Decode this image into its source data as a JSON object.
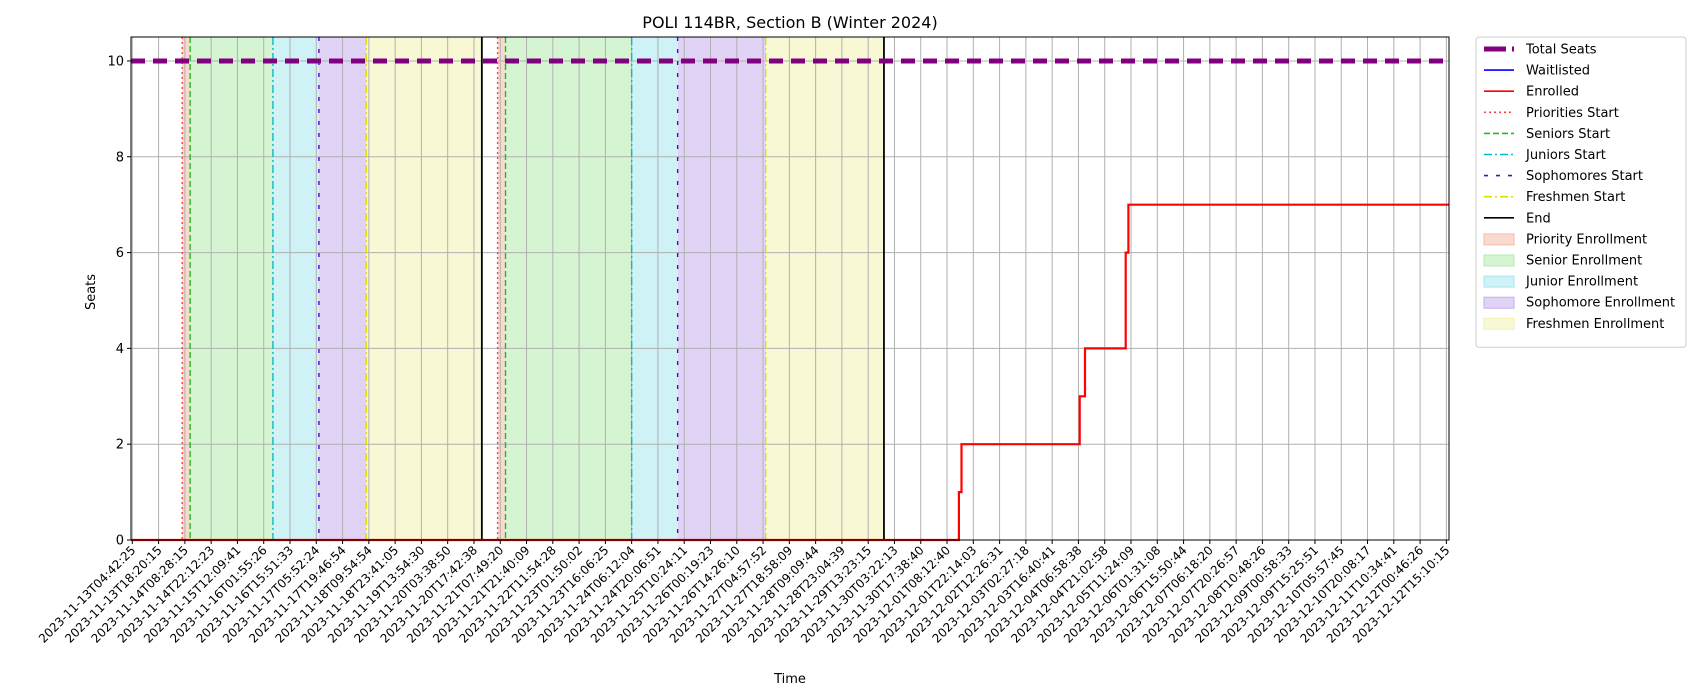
{
  "chart_data": {
    "type": "line",
    "title": "POLI 114BR, Section B (Winter 2024)",
    "xlabel": "Time",
    "ylabel": "Seats",
    "ylim": [
      0,
      10.5
    ],
    "y_ticks": [
      0,
      2,
      4,
      6,
      8,
      10
    ],
    "grid": true,
    "legend_position": "outside-right",
    "x_tick_labels": [
      "2023-11-13T04:42:25",
      "2023-11-13T18:20:15",
      "2023-11-14T08:28:15",
      "2023-11-14T22:12:23",
      "2023-11-15T12:09:41",
      "2023-11-16T01:55:26",
      "2023-11-16T15:51:33",
      "2023-11-17T05:52:24",
      "2023-11-17T19:46:54",
      "2023-11-18T09:54:54",
      "2023-11-18T23:41:05",
      "2023-11-19T13:54:30",
      "2023-11-20T03:38:50",
      "2023-11-20T17:42:38",
      "2023-11-21T07:49:20",
      "2023-11-21T21:40:09",
      "2023-11-22T11:54:28",
      "2023-11-23T01:50:02",
      "2023-11-23T16:06:25",
      "2023-11-24T06:12:04",
      "2023-11-24T20:06:51",
      "2023-11-25T10:24:11",
      "2023-11-26T00:19:23",
      "2023-11-26T14:26:10",
      "2023-11-27T04:57:52",
      "2023-11-27T18:58:09",
      "2023-11-28T09:09:44",
      "2023-11-28T23:04:39",
      "2023-11-29T13:23:15",
      "2023-11-30T03:22:13",
      "2023-11-30T17:38:40",
      "2023-12-01T08:12:40",
      "2023-12-01T22:14:03",
      "2023-12-02T12:26:31",
      "2023-12-03T02:27:18",
      "2023-12-03T16:40:41",
      "2023-12-04T06:58:38",
      "2023-12-04T21:02:58",
      "2023-12-05T11:24:09",
      "2023-12-06T01:31:08",
      "2023-12-06T15:50:44",
      "2023-12-07T06:18:20",
      "2023-12-07T20:26:57",
      "2023-12-08T10:48:26",
      "2023-12-09T00:58:33",
      "2023-12-09T15:25:51",
      "2023-12-10T05:57:45",
      "2023-12-10T20:08:17",
      "2023-12-11T10:34:41",
      "2023-12-12T00:46:26",
      "2023-12-12T15:10:15"
    ],
    "x_range_ticks": [
      -0.05,
      50.1
    ],
    "series": [
      {
        "name": "Total Seats",
        "style": "dashed-thick",
        "color": "#800080",
        "points": [
          [
            -0.05,
            10
          ],
          [
            50.1,
            10
          ]
        ]
      },
      {
        "name": "Waitlisted",
        "style": "solid-thin",
        "color": "#0000ff",
        "points": [
          [
            -0.05,
            0
          ],
          [
            50.1,
            0
          ]
        ]
      },
      {
        "name": "Enrolled",
        "style": "solid",
        "color": "#ff0000",
        "points": [
          [
            -0.05,
            0
          ],
          [
            31.45,
            0
          ],
          [
            31.45,
            1
          ],
          [
            31.55,
            1
          ],
          [
            31.55,
            2
          ],
          [
            36.05,
            2
          ],
          [
            36.05,
            3
          ],
          [
            36.25,
            3
          ],
          [
            36.25,
            4
          ],
          [
            37.8,
            4
          ],
          [
            37.8,
            6
          ],
          [
            37.9,
            6
          ],
          [
            37.9,
            7
          ],
          [
            50.1,
            7
          ]
        ]
      }
    ],
    "phase_markers": [
      {
        "name": "Priorities Start",
        "color": "#ff4040",
        "dash": "dotted",
        "positions": [
          1.9,
          13.9
        ]
      },
      {
        "name": "Seniors Start",
        "color": "#22bb22",
        "dash": "dashed",
        "positions": [
          2.2,
          14.2
        ]
      },
      {
        "name": "Juniors Start",
        "color": "#00bbcc",
        "dash": "dashdot",
        "positions": [
          5.35,
          19.0
        ]
      },
      {
        "name": "Sophomores Start",
        "color": "#5500dd",
        "dash": "loosedash",
        "positions": [
          7.1,
          20.75
        ]
      },
      {
        "name": "Freshmen Start",
        "color": "#dddd00",
        "dash": "dashdot",
        "positions": [
          8.9,
          24.1
        ]
      },
      {
        "name": "End",
        "color": "#000000",
        "dash": "solid",
        "positions": [
          13.3,
          28.6
        ]
      }
    ],
    "phase_spans": [
      {
        "name": "Priority Enrollment",
        "color": "#f4bba8",
        "ranges": [
          [
            1.9,
            2.2
          ],
          [
            13.9,
            14.2
          ]
        ]
      },
      {
        "name": "Senior Enrollment",
        "color": "#b3ecad",
        "ranges": [
          [
            2.2,
            5.35
          ],
          [
            14.2,
            19.0
          ]
        ]
      },
      {
        "name": "Junior Enrollment",
        "color": "#a6e8ee",
        "ranges": [
          [
            5.35,
            7.1
          ],
          [
            19.0,
            20.75
          ]
        ]
      },
      {
        "name": "Sophomore Enrollment",
        "color": "#c8aeec",
        "ranges": [
          [
            7.1,
            8.9
          ],
          [
            20.75,
            24.1
          ]
        ]
      },
      {
        "name": "Freshmen Enrollment",
        "color": "#f2f2b3",
        "ranges": [
          [
            8.9,
            13.3
          ],
          [
            24.1,
            28.6
          ]
        ]
      }
    ],
    "legend": [
      {
        "label": "Total Seats",
        "kind": "line",
        "color": "#800080",
        "dash": "thickdash"
      },
      {
        "label": "Waitlisted",
        "kind": "line",
        "color": "#0000ff",
        "dash": "solid"
      },
      {
        "label": "Enrolled",
        "kind": "line",
        "color": "#ff0000",
        "dash": "solid"
      },
      {
        "label": "Priorities Start",
        "kind": "line",
        "color": "#ff4040",
        "dash": "dotted"
      },
      {
        "label": "Seniors Start",
        "kind": "line",
        "color": "#22bb22",
        "dash": "dashed"
      },
      {
        "label": "Juniors Start",
        "kind": "line",
        "color": "#00bbcc",
        "dash": "dashdot"
      },
      {
        "label": "Sophomores Start",
        "kind": "line",
        "color": "#5500dd",
        "dash": "loosedash"
      },
      {
        "label": "Freshmen Start",
        "kind": "line",
        "color": "#dddd00",
        "dash": "dashdot"
      },
      {
        "label": "End",
        "kind": "line",
        "color": "#000000",
        "dash": "solid"
      },
      {
        "label": "Priority Enrollment",
        "kind": "patch",
        "color": "#f4bba8"
      },
      {
        "label": "Senior Enrollment",
        "kind": "patch",
        "color": "#b3ecad"
      },
      {
        "label": "Junior Enrollment",
        "kind": "patch",
        "color": "#a6e8ee"
      },
      {
        "label": "Sophomore Enrollment",
        "kind": "patch",
        "color": "#c8aeec"
      },
      {
        "label": "Freshmen Enrollment",
        "kind": "patch",
        "color": "#f2f2b3"
      }
    ]
  }
}
